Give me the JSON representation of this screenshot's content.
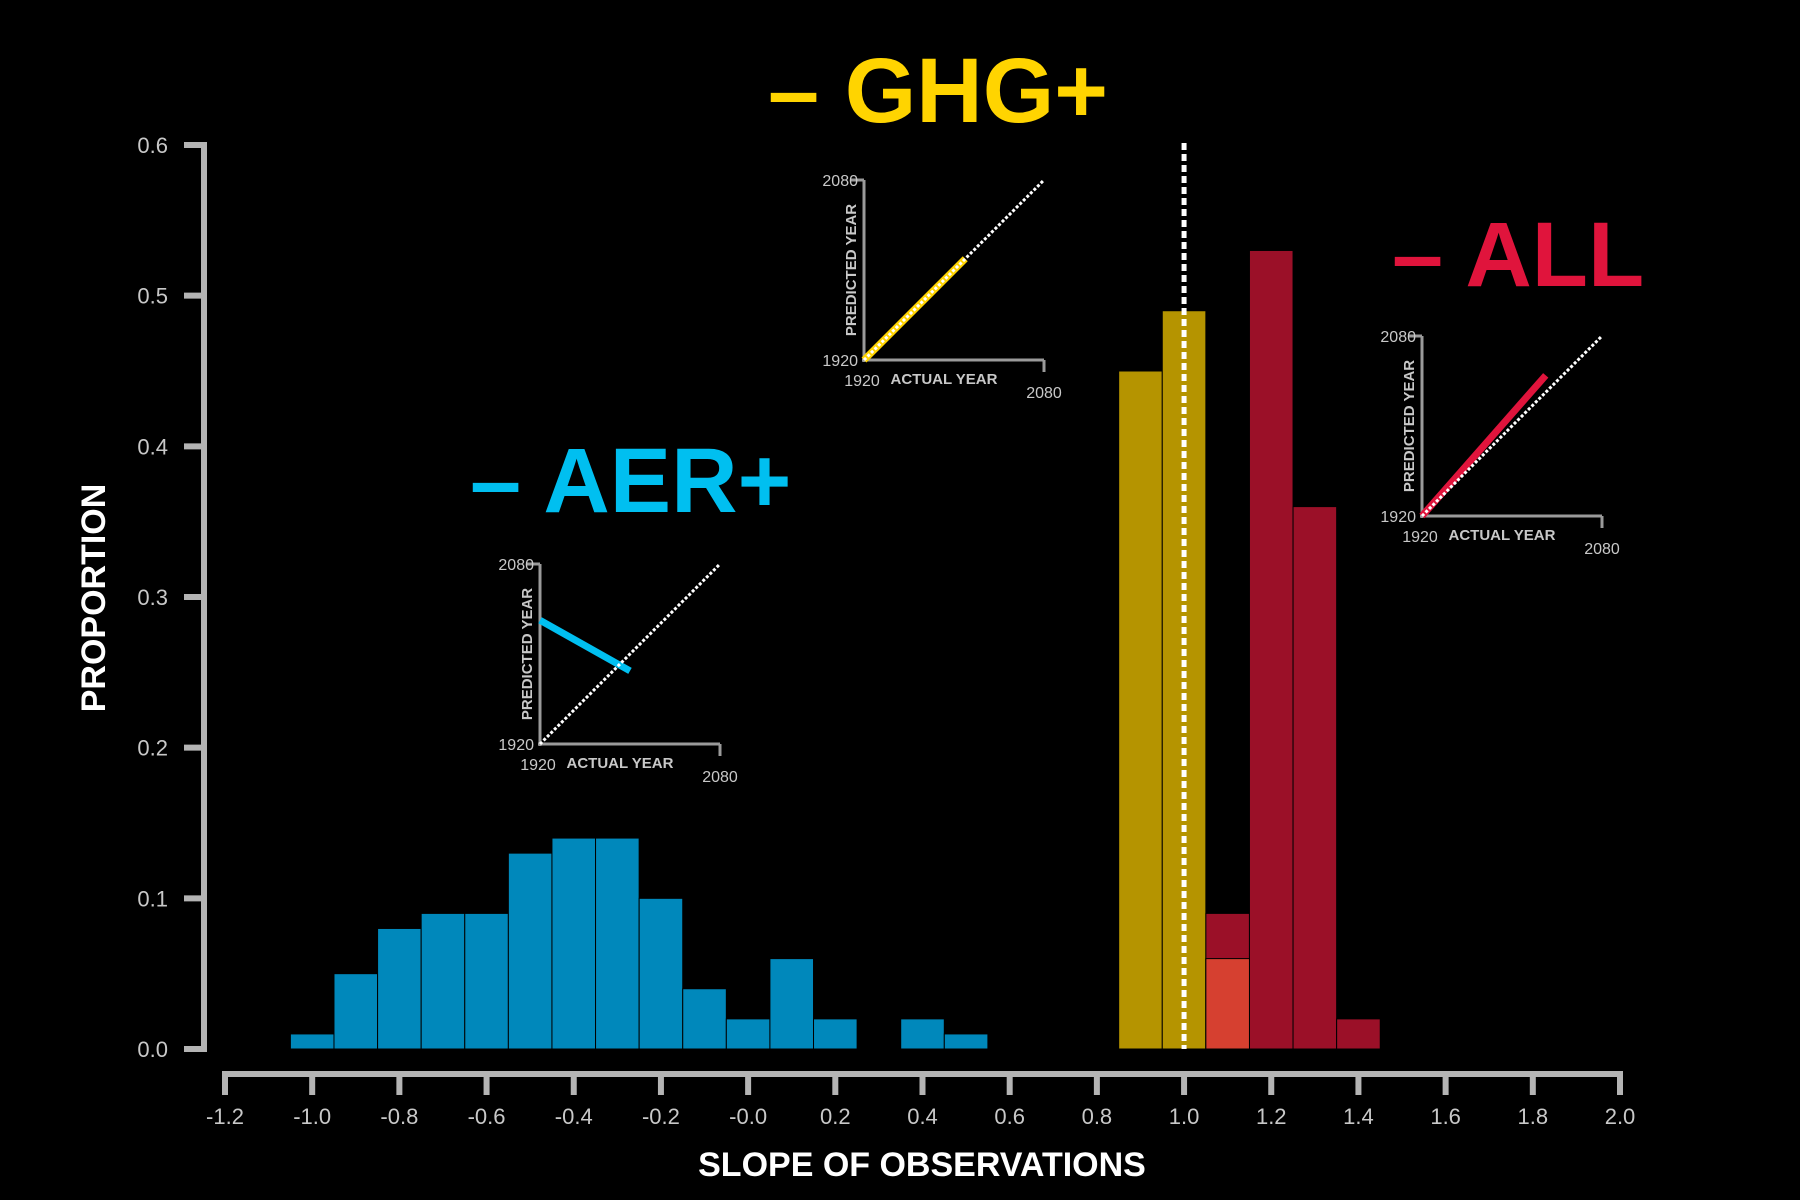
{
  "chart_data": {
    "type": "bar",
    "xlabel": "SLOPE OF OBSERVATIONS",
    "ylabel": "PROPORTION",
    "xlim": [
      -1.2,
      2.0
    ],
    "ylim": [
      0.0,
      0.6
    ],
    "x_ticks": [
      "-1.2",
      "-1.0",
      "-0.8",
      "-0.6",
      "-0.4",
      "-0.2",
      "-0.0",
      "0.2",
      "0.4",
      "0.6",
      "0.8",
      "1.0",
      "1.2",
      "1.4",
      "1.6",
      "1.8",
      "2.0"
    ],
    "y_ticks": [
      "0.0",
      "0.1",
      "0.2",
      "0.3",
      "0.4",
      "0.5",
      "0.6"
    ],
    "bin_width": 0.1,
    "reference_line_x": 1.0,
    "grid": false,
    "series": [
      {
        "name": "AER",
        "color": "#0088bb",
        "bin_centers": [
          -1.0,
          -0.9,
          -0.8,
          -0.7,
          -0.6,
          -0.5,
          -0.4,
          -0.3,
          -0.2,
          -0.1,
          0.0,
          0.1,
          0.2,
          0.4,
          0.5
        ],
        "values": [
          0.01,
          0.05,
          0.08,
          0.09,
          0.09,
          0.13,
          0.14,
          0.14,
          0.1,
          0.04,
          0.02,
          0.06,
          0.02,
          0.02,
          0.01
        ]
      },
      {
        "name": "GHG",
        "color": "#b59400",
        "bin_centers": [
          0.9,
          1.0,
          1.1
        ],
        "values": [
          0.45,
          0.49,
          0.06
        ]
      },
      {
        "name": "ALL",
        "color": "#9b1028",
        "bin_centers": [
          1.1,
          1.2,
          1.3,
          1.4
        ],
        "values": [
          0.09,
          0.53,
          0.36,
          0.02
        ]
      }
    ],
    "overlap_color": "#d64030"
  },
  "labels": {
    "aer": {
      "prefix": "–",
      "name": "AER",
      "suffix": "+",
      "color": "#00bff0"
    },
    "ghg": {
      "prefix": "–",
      "name": "GHG",
      "suffix": "+",
      "color": "#ffd400"
    },
    "all": {
      "prefix": "–",
      "name": "ALL",
      "suffix": "",
      "color": "#e0143c"
    }
  },
  "insets": {
    "common": {
      "y_title": "PREDICTED YEAR",
      "x_title": "ACTUAL YEAR",
      "x_min_label": "1920",
      "x_max_label": "2080",
      "y_min_label": "1920",
      "y_max_label": "2080"
    },
    "aer": {
      "line_color": "#00bff0",
      "line": [
        [
          1920,
          2030
        ],
        [
          2000,
          1985
        ]
      ]
    },
    "ghg": {
      "line_color": "#ffd400",
      "line": [
        [
          1920,
          1920
        ],
        [
          2010,
          2010
        ]
      ]
    },
    "all": {
      "line_color": "#e0143c",
      "line": [
        [
          1920,
          1920
        ],
        [
          2030,
          2045
        ]
      ]
    }
  }
}
